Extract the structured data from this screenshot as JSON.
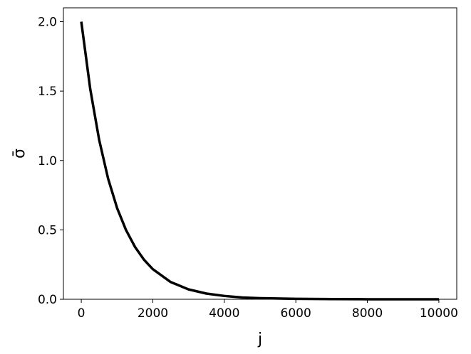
{
  "chart_data": {
    "type": "line",
    "xlabel": "j",
    "ylabel": "σ̄",
    "x": [
      0,
      250,
      500,
      750,
      1000,
      1250,
      1500,
      1750,
      2000,
      2500,
      3000,
      3500,
      4000,
      4500,
      5000,
      6000,
      7000,
      8000,
      9000,
      10000
    ],
    "series": [
      {
        "color": "#000000",
        "values": [
          2.0,
          1.515,
          1.148,
          0.869,
          0.658,
          0.499,
          0.378,
          0.286,
          0.217,
          0.124,
          0.071,
          0.041,
          0.024,
          0.013,
          0.008,
          0.003,
          0.001,
          0.0003,
          0.0001,
          0.0
        ]
      }
    ],
    "xlim": [
      -500,
      10500
    ],
    "ylim": [
      0,
      2.1
    ],
    "xticks": [
      0,
      2000,
      4000,
      6000,
      8000,
      10000
    ],
    "yticks": [
      {
        "value": 0,
        "label": "0.0"
      },
      {
        "value": 0.5,
        "label": "0.5"
      },
      {
        "value": 1,
        "label": "1.0"
      },
      {
        "value": 1.5,
        "label": "1.5"
      },
      {
        "value": 2,
        "label": "2.0"
      }
    ],
    "grid": false
  }
}
